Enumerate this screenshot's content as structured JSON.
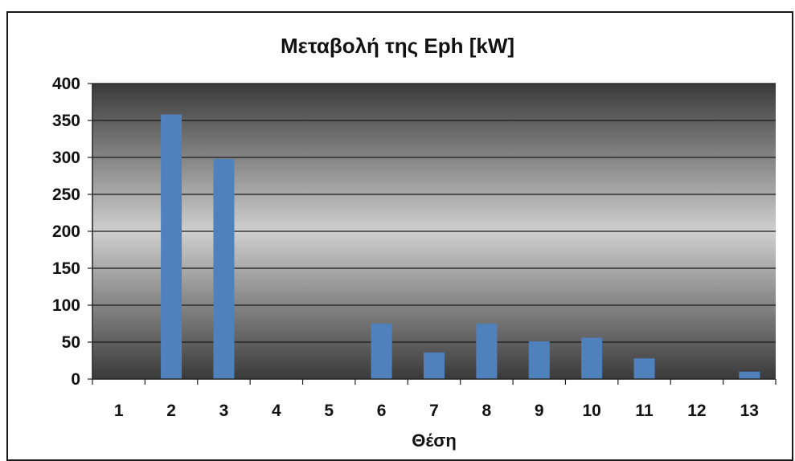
{
  "chart_data": {
    "type": "bar",
    "title": "Μεταβολή της Eph [kW]",
    "xlabel": "Θέση",
    "ylabel": "",
    "categories": [
      "1",
      "2",
      "3",
      "4",
      "5",
      "6",
      "7",
      "8",
      "9",
      "10",
      "11",
      "12",
      "13"
    ],
    "values": [
      0,
      358,
      298,
      0,
      0,
      75,
      36,
      75,
      51,
      56,
      28,
      0,
      10
    ],
    "ylim": [
      0,
      400
    ],
    "yticks": [
      0,
      50,
      100,
      150,
      200,
      250,
      300,
      350,
      400
    ],
    "grid": true,
    "legend": "none",
    "colors": {
      "bar": "#4f81bd",
      "plot_edge": "#3a3a3a",
      "plot_center": "#cfcfcf",
      "gridline": "#1a1a1a"
    }
  }
}
